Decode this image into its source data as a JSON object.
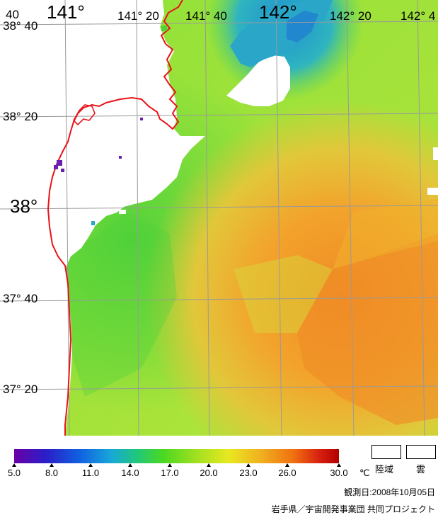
{
  "map": {
    "lon_labels_top": [
      "40",
      "141°",
      "141° 20",
      "141° 40",
      "142°",
      "142° 20",
      "142° 4"
    ],
    "lat_labels": [
      "38° 40",
      "38° 20",
      "38°",
      "37° 40",
      "37° 20"
    ],
    "colors": {
      "coastline": "#e8141a",
      "grid": "#9a9a9a",
      "land": "#ffffff",
      "sst_cool": "#2aa6c8",
      "sst_green": "#5fd23a",
      "sst_yellowgreen": "#b8e83a",
      "sst_yellow": "#e0e03a",
      "sst_orange": "#f29a28",
      "anomaly_purple": "#6a1fb0"
    }
  },
  "legend": {
    "tick_labels": [
      "5.0",
      "8.0",
      "11.0",
      "14.0",
      "17.0",
      "20.0",
      "23.0",
      "26.0",
      "30.0"
    ],
    "unit": "℃",
    "land_label": "陸域",
    "cloud_label": "雲",
    "gradient": [
      "#6a00a8",
      "#2a1fc8",
      "#1060e0",
      "#18a8d8",
      "#20c878",
      "#4cd820",
      "#a0e020",
      "#e8e820",
      "#f0b020",
      "#f07010",
      "#d82010",
      "#b00000"
    ]
  },
  "footer": {
    "observation_date": "観測日:2008年10月05日",
    "credit": "岩手県／宇宙開発事業団 共同プロジェクト"
  }
}
